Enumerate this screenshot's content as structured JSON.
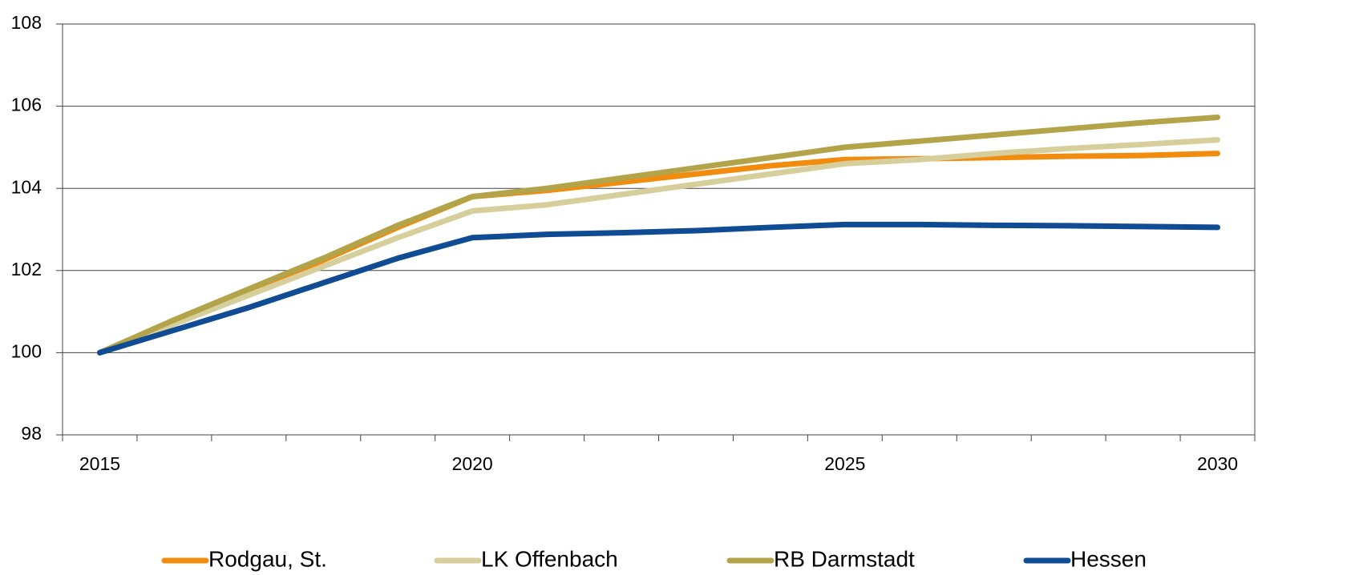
{
  "chart_data": {
    "type": "line",
    "categories": [
      "2015",
      null,
      null,
      null,
      null,
      "2020",
      null,
      null,
      null,
      null,
      "2025",
      null,
      null,
      null,
      null,
      "2030"
    ],
    "series": [
      {
        "name": "Rodgau, St.",
        "color": "#f28c0f",
        "values": [
          100,
          100.78,
          101.5,
          102.25,
          103.05,
          103.8,
          103.95,
          104.15,
          104.35,
          104.55,
          104.7,
          104.72,
          104.75,
          104.78,
          104.8,
          104.85
        ]
      },
      {
        "name": "LK Offenbach",
        "color": "#d6cf9b",
        "values": [
          100,
          100.7,
          101.4,
          102.1,
          102.8,
          103.45,
          103.6,
          103.85,
          104.1,
          104.35,
          104.6,
          104.7,
          104.85,
          104.97,
          105.07,
          105.18
        ]
      },
      {
        "name": "RB Darmstadt",
        "color": "#b3a44a",
        "values": [
          100,
          100.8,
          101.55,
          102.3,
          103.1,
          103.8,
          104.0,
          104.25,
          104.5,
          104.75,
          105.0,
          105.15,
          105.3,
          105.45,
          105.6,
          105.73
        ]
      },
      {
        "name": "Hessen",
        "color": "#0f4c93",
        "values": [
          100,
          100.55,
          101.1,
          101.7,
          102.3,
          102.8,
          102.88,
          102.92,
          102.97,
          103.05,
          103.12,
          103.12,
          103.1,
          103.09,
          103.07,
          103.05
        ]
      }
    ],
    "ylim": [
      98,
      108
    ],
    "yticks": [
      98,
      100,
      102,
      104,
      106,
      108
    ],
    "grid": true
  }
}
